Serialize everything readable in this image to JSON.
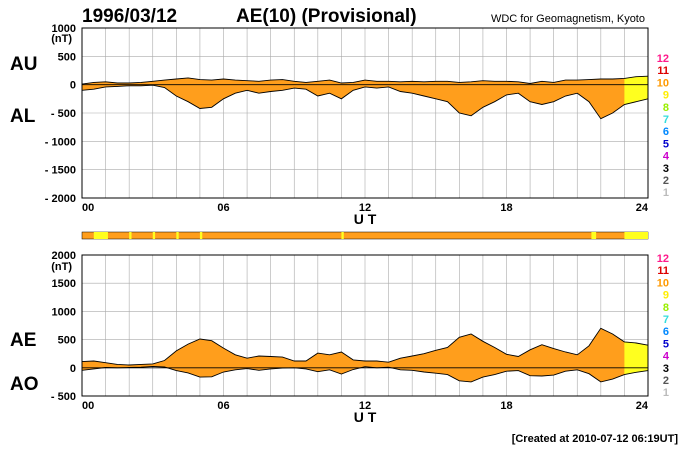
{
  "header": {
    "date": "1996/03/12",
    "title": "AE(10) (Provisional)",
    "source": "WDC for Geomagnetism, Kyoto"
  },
  "footer": {
    "created": "[Created at 2010-07-12 06:19UT]"
  },
  "colors": {
    "fill_main": "#ff9e1c",
    "fill_high": "#ffff1f",
    "trace": "#000000",
    "grid": "#aaaaaa"
  },
  "station_legend": {
    "labels": [
      "12",
      "11",
      "10",
      "9",
      "8",
      "7",
      "6",
      "5",
      "4",
      "3",
      "2",
      "1"
    ],
    "colors": [
      "#ff1a8c",
      "#dd0000",
      "#ff9900",
      "#ffee00",
      "#99ee00",
      "#33dddd",
      "#0088ff",
      "#0000cc",
      "#cc00cc",
      "#000000",
      "#555555",
      "#bbbbbb"
    ]
  },
  "chart_data": [
    {
      "type": "area",
      "panel": "AU/AL",
      "series_labels": [
        "AU",
        "AL"
      ],
      "unit": "(nT)",
      "xlabel": "U T",
      "x_ticks": [
        "00",
        "06",
        "12",
        "18",
        "24"
      ],
      "y_ticks": [
        1000,
        500,
        0,
        -500,
        -1000,
        -1500,
        -2000
      ],
      "y_tick_labels": [
        "1000",
        "500",
        "0",
        "- 500",
        "- 1000",
        "- 1500",
        "- 2000"
      ],
      "ylim": [
        -2000,
        1000
      ],
      "xlim": [
        0,
        24
      ],
      "grid": true,
      "x_hours": [
        0,
        0.5,
        1,
        1.5,
        2,
        2.5,
        3,
        3.5,
        4,
        4.5,
        5,
        5.5,
        6,
        6.5,
        7,
        7.5,
        8,
        8.5,
        9,
        9.5,
        10,
        10.5,
        11,
        11.5,
        12,
        12.5,
        13,
        13.5,
        14,
        14.5,
        15,
        15.5,
        16,
        16.5,
        17,
        17.5,
        18,
        18.5,
        19,
        19.5,
        20,
        20.5,
        21,
        21.5,
        22,
        22.5,
        23,
        23.5,
        24
      ],
      "AU": [
        10,
        40,
        50,
        30,
        30,
        40,
        60,
        80,
        100,
        120,
        90,
        80,
        100,
        80,
        70,
        60,
        80,
        90,
        60,
        40,
        60,
        80,
        30,
        40,
        80,
        60,
        60,
        50,
        60,
        50,
        60,
        60,
        40,
        50,
        70,
        60,
        60,
        50,
        20,
        60,
        40,
        80,
        80,
        90,
        100,
        100,
        110,
        140,
        150
      ],
      "AL": [
        -100,
        -80,
        -40,
        -30,
        -20,
        -20,
        -10,
        -50,
        -200,
        -300,
        -420,
        -400,
        -250,
        -150,
        -100,
        -150,
        -120,
        -100,
        -60,
        -80,
        -200,
        -150,
        -250,
        -100,
        -40,
        -60,
        -40,
        -120,
        -150,
        -200,
        -250,
        -300,
        -500,
        -550,
        -400,
        -300,
        -180,
        -150,
        -300,
        -350,
        -300,
        -200,
        -150,
        -300,
        -600,
        -500,
        -350,
        -300,
        -250
      ]
    },
    {
      "type": "area",
      "panel": "AE/AO",
      "series_labels": [
        "AE",
        "AO"
      ],
      "unit": "(nT)",
      "xlabel": "U T",
      "x_ticks": [
        "00",
        "06",
        "12",
        "18",
        "24"
      ],
      "y_ticks": [
        2000,
        1500,
        1000,
        500,
        0,
        -500
      ],
      "y_tick_labels": [
        "2000",
        "1500",
        "1000",
        "500",
        "0",
        "- 500"
      ],
      "ylim": [
        -500,
        2000
      ],
      "xlim": [
        0,
        24
      ],
      "grid": true,
      "x_hours": [
        0,
        0.5,
        1,
        1.5,
        2,
        2.5,
        3,
        3.5,
        4,
        4.5,
        5,
        5.5,
        6,
        6.5,
        7,
        7.5,
        8,
        8.5,
        9,
        9.5,
        10,
        10.5,
        11,
        11.5,
        12,
        12.5,
        13,
        13.5,
        14,
        14.5,
        15,
        15.5,
        16,
        16.5,
        17,
        17.5,
        18,
        18.5,
        19,
        19.5,
        20,
        20.5,
        21,
        21.5,
        22,
        22.5,
        23,
        23.5,
        24
      ],
      "AE": [
        110,
        120,
        90,
        60,
        50,
        60,
        70,
        130,
        300,
        420,
        510,
        480,
        350,
        230,
        170,
        210,
        200,
        190,
        120,
        120,
        260,
        230,
        280,
        140,
        120,
        120,
        100,
        170,
        210,
        250,
        310,
        360,
        540,
        600,
        470,
        360,
        240,
        200,
        320,
        410,
        340,
        280,
        230,
        390,
        700,
        600,
        460,
        440,
        400
      ],
      "AO": [
        -45,
        -20,
        5,
        0,
        5,
        10,
        25,
        15,
        -50,
        -90,
        -165,
        -160,
        -75,
        -35,
        -15,
        -45,
        -20,
        -5,
        0,
        -20,
        -70,
        -35,
        -110,
        -30,
        20,
        0,
        10,
        -35,
        -45,
        -75,
        -95,
        -120,
        -230,
        -250,
        -165,
        -120,
        -60,
        -50,
        -140,
        -145,
        -130,
        -60,
        -35,
        -105,
        -250,
        -200,
        -120,
        -80,
        -50
      ]
    }
  ],
  "activity_bar": {
    "base": "#ff9e1c",
    "highlight_color": "#ffff1f",
    "highlight_hours": [
      [
        0.5,
        1.1
      ],
      [
        2.0,
        2.1
      ],
      [
        3.0,
        3.1
      ],
      [
        4.0,
        4.1
      ],
      [
        5.0,
        5.1
      ],
      [
        11.0,
        11.1
      ],
      [
        21.6,
        21.8
      ],
      [
        23.0,
        24.0
      ]
    ]
  }
}
